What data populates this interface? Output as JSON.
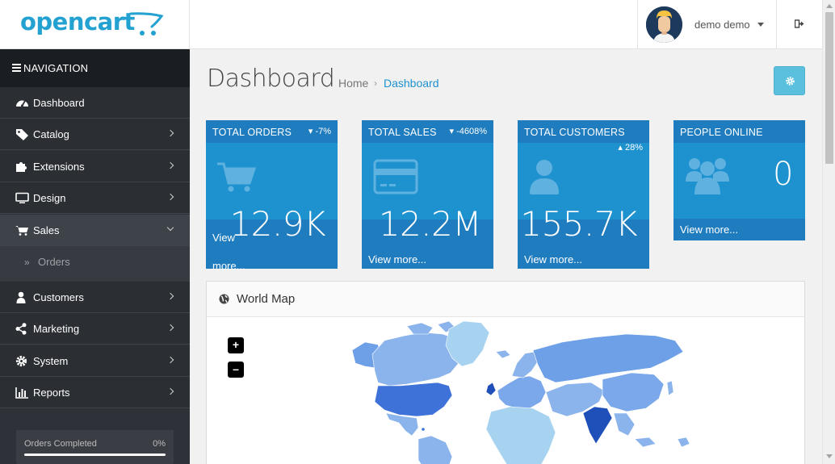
{
  "header": {
    "logo_text": "opencart",
    "user_name": "demo demo"
  },
  "sidebar": {
    "nav_title": "NAVIGATION",
    "items": [
      {
        "label": "Dashboard",
        "icon": "dashboard-icon"
      },
      {
        "label": "Catalog",
        "icon": "tag-icon"
      },
      {
        "label": "Extensions",
        "icon": "puzzle-icon"
      },
      {
        "label": "Design",
        "icon": "desktop-icon"
      },
      {
        "label": "Sales",
        "icon": "cart-icon",
        "expanded": true
      },
      {
        "label": "Customers",
        "icon": "user-icon"
      },
      {
        "label": "Marketing",
        "icon": "share-icon"
      },
      {
        "label": "System",
        "icon": "gear-icon"
      },
      {
        "label": "Reports",
        "icon": "bar-chart-icon"
      }
    ],
    "sub_items": [
      {
        "label": "Orders"
      }
    ],
    "progress": {
      "label": "Orders Completed",
      "value_text": "0%",
      "value": 0
    }
  },
  "page": {
    "title": "Dashboard",
    "breadcrumb": [
      "Home",
      "Dashboard"
    ]
  },
  "tiles": [
    {
      "title": "TOTAL ORDERS",
      "change": "-7%",
      "direction": "down",
      "value": "12.9K",
      "footer": "View more...",
      "icon": "shopping-cart-icon"
    },
    {
      "title": "TOTAL SALES",
      "change": "-4608%",
      "direction": "down",
      "value": "12.2M",
      "footer": "View more...",
      "icon": "credit-card-icon"
    },
    {
      "title": "TOTAL CUSTOMERS",
      "change": "28%",
      "direction": "up",
      "value": "155.7K",
      "footer": "View more...",
      "icon": "user-icon"
    },
    {
      "title": "PEOPLE ONLINE",
      "value": "0",
      "footer": "View more...",
      "icon": "users-icon"
    }
  ],
  "world_map": {
    "title": "World Map",
    "zoom_in": "+",
    "zoom_out": "–"
  },
  "colors": {
    "brand": "#23a1d1",
    "tile": "#1e91cf",
    "tile_dark": "#1f7cbe",
    "sidebar": "#2e3238",
    "settings_button": "#5bc0de"
  }
}
